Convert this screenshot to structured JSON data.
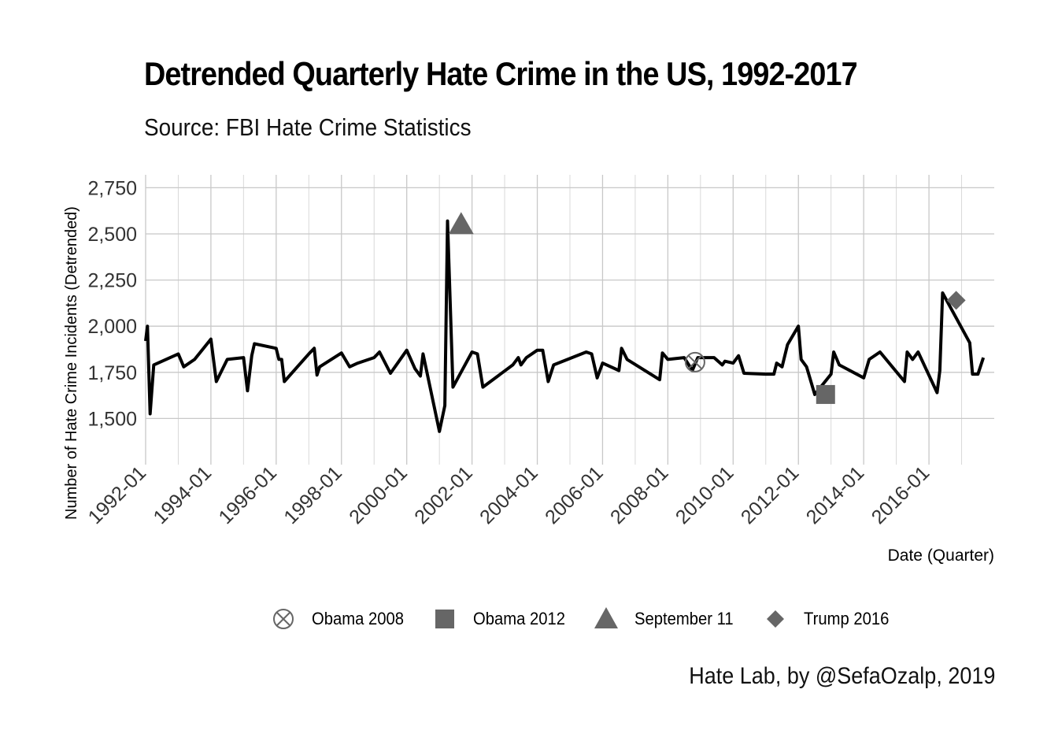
{
  "chart_data": {
    "type": "line",
    "title": "Detrended Quarterly Hate Crime in the US, 1992-2017",
    "subtitle": "Source: FBI Hate Crime Statistics",
    "caption": "Hate Lab, by @SefaOzalp, 2019",
    "xlabel": "Date (Quarter)",
    "ylabel": "Number of Hate Crime Incidents (Detrended)",
    "xlim": [
      "1992-01-01",
      "2018-01-01"
    ],
    "ylim": [
      1250,
      2820
    ],
    "x_ticks": [
      "1992-01",
      "1994-01",
      "1996-01",
      "1998-01",
      "2000-01",
      "2002-01",
      "2004-01",
      "2006-01",
      "2008-01",
      "2010-01",
      "2012-01",
      "2014-01",
      "2016-01"
    ],
    "y_ticks": [
      1500,
      1750,
      2000,
      2250,
      2500,
      2750
    ],
    "y_tick_labels": [
      "1,500",
      "1,750",
      "2,000",
      "2,250",
      "2,500",
      "2,750"
    ],
    "grid": true,
    "legend_position": "bottom",
    "series": [
      {
        "name": "",
        "color": "#000000",
        "points": [
          [
            "1992-01-01",
            1920
          ],
          [
            "1992-01-21",
            2000
          ],
          [
            "1992-02-21",
            1525
          ],
          [
            "1992-03-31",
            1790
          ],
          [
            "1993-01-01",
            1850
          ],
          [
            "1993-03-01",
            1780
          ],
          [
            "1993-07-01",
            1820
          ],
          [
            "1994-01-01",
            1930
          ],
          [
            "1994-03-01",
            1700
          ],
          [
            "1994-07-01",
            1820
          ],
          [
            "1995-01-01",
            1830
          ],
          [
            "1995-02-15",
            1650
          ],
          [
            "1995-04-01",
            1840
          ],
          [
            "1995-05-01",
            1905
          ],
          [
            "1996-01-01",
            1880
          ],
          [
            "1996-02-01",
            1820
          ],
          [
            "1996-03-01",
            1820
          ],
          [
            "1996-04-01",
            1700
          ],
          [
            "1997-01-01",
            1850
          ],
          [
            "1997-03-01",
            1880
          ],
          [
            "1997-04-01",
            1735
          ],
          [
            "1997-05-01",
            1780
          ],
          [
            "1998-01-01",
            1855
          ],
          [
            "1998-04-01",
            1780
          ],
          [
            "1998-07-01",
            1800
          ],
          [
            "1999-01-01",
            1830
          ],
          [
            "1999-03-01",
            1860
          ],
          [
            "1999-07-01",
            1745
          ],
          [
            "2000-01-01",
            1870
          ],
          [
            "2000-04-01",
            1770
          ],
          [
            "2000-06-01",
            1730
          ],
          [
            "2000-07-01",
            1850
          ],
          [
            "2001-01-01",
            1430
          ],
          [
            "2001-03-01",
            1570
          ],
          [
            "2001-04-01",
            2570
          ],
          [
            "2001-06-01",
            1670
          ],
          [
            "2002-01-01",
            1860
          ],
          [
            "2002-03-01",
            1850
          ],
          [
            "2002-05-01",
            1670
          ],
          [
            "2003-04-01",
            1790
          ],
          [
            "2003-06-01",
            1830
          ],
          [
            "2003-07-01",
            1790
          ],
          [
            "2003-09-01",
            1830
          ],
          [
            "2004-01-01",
            1870
          ],
          [
            "2004-03-01",
            1870
          ],
          [
            "2004-05-01",
            1700
          ],
          [
            "2004-07-01",
            1790
          ],
          [
            "2005-07-01",
            1860
          ],
          [
            "2005-09-01",
            1850
          ],
          [
            "2005-11-01",
            1720
          ],
          [
            "2006-01-01",
            1800
          ],
          [
            "2006-07-01",
            1760
          ],
          [
            "2006-08-01",
            1880
          ],
          [
            "2006-10-01",
            1820
          ],
          [
            "2007-10-01",
            1710
          ],
          [
            "2007-11-01",
            1855
          ],
          [
            "2008-01-01",
            1820
          ],
          [
            "2008-07-01",
            1830
          ],
          [
            "2008-10-01",
            1760
          ],
          [
            "2008-12-01",
            1830
          ],
          [
            "2009-06-01",
            1830
          ],
          [
            "2009-09-01",
            1790
          ],
          [
            "2009-10-01",
            1810
          ],
          [
            "2010-01-01",
            1800
          ],
          [
            "2010-03-01",
            1840
          ],
          [
            "2010-05-01",
            1745
          ],
          [
            "2011-01-01",
            1740
          ],
          [
            "2011-04-01",
            1740
          ],
          [
            "2011-05-01",
            1800
          ],
          [
            "2011-07-01",
            1780
          ],
          [
            "2011-09-01",
            1900
          ],
          [
            "2012-01-01",
            2000
          ],
          [
            "2012-02-01",
            1820
          ],
          [
            "2012-04-01",
            1780
          ],
          [
            "2012-07-01",
            1630
          ],
          [
            "2013-01-01",
            1740
          ],
          [
            "2013-02-01",
            1860
          ],
          [
            "2013-04-01",
            1790
          ],
          [
            "2014-01-01",
            1720
          ],
          [
            "2014-03-01",
            1820
          ],
          [
            "2014-07-01",
            1860
          ],
          [
            "2015-04-01",
            1700
          ],
          [
            "2015-05-01",
            1860
          ],
          [
            "2015-07-01",
            1820
          ],
          [
            "2015-09-01",
            1860
          ],
          [
            "2016-04-01",
            1640
          ],
          [
            "2016-05-01",
            1760
          ],
          [
            "2016-06-01",
            2180
          ],
          [
            "2017-04-01",
            1910
          ],
          [
            "2017-05-01",
            1740
          ],
          [
            "2017-07-01",
            1740
          ],
          [
            "2017-09-01",
            1830
          ]
        ]
      }
    ],
    "markers": [
      {
        "name": "Obama 2008",
        "date": "2008-11-01",
        "value": 1805,
        "shape": "circle-x",
        "color": "#666666"
      },
      {
        "name": "Obama 2012",
        "date": "2012-11-01",
        "value": 1630,
        "shape": "square",
        "color": "#666666"
      },
      {
        "name": "September 11",
        "date": "2001-09-01",
        "value": 2550,
        "shape": "triangle",
        "color": "#666666"
      },
      {
        "name": "Trump 2016",
        "date": "2016-11-01",
        "value": 2140,
        "shape": "diamond",
        "color": "#666666"
      }
    ]
  }
}
